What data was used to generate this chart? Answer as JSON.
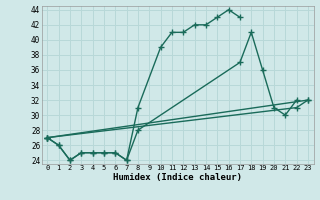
{
  "xlabel": "Humidex (Indice chaleur)",
  "xlim": [
    -0.5,
    23.5
  ],
  "ylim": [
    23.5,
    44.5
  ],
  "xticks": [
    0,
    1,
    2,
    3,
    4,
    5,
    6,
    7,
    8,
    9,
    10,
    11,
    12,
    13,
    14,
    15,
    16,
    17,
    18,
    19,
    20,
    21,
    22,
    23
  ],
  "yticks": [
    24,
    26,
    28,
    30,
    32,
    34,
    36,
    38,
    40,
    42,
    44
  ],
  "bg_color": "#d0e8e8",
  "grid_color": "#b8d8d8",
  "line_color": "#1a6b5a",
  "lines": [
    {
      "x": [
        0,
        1,
        2,
        3,
        4,
        5,
        6,
        7,
        8,
        10,
        11,
        12,
        13,
        14,
        15,
        16,
        17
      ],
      "y": [
        27,
        26,
        24,
        25,
        25,
        25,
        25,
        24,
        31,
        39,
        41,
        41,
        42,
        42,
        43,
        44,
        43
      ]
    },
    {
      "x": [
        0,
        1,
        2,
        3,
        4,
        5,
        6,
        7,
        8,
        17,
        18,
        19,
        20,
        21,
        22
      ],
      "y": [
        27,
        26,
        24,
        25,
        25,
        25,
        25,
        24,
        28,
        37,
        41,
        36,
        31,
        30,
        32
      ]
    },
    {
      "x": [
        0,
        22,
        23
      ],
      "y": [
        27,
        31,
        32
      ]
    },
    {
      "x": [
        0,
        23
      ],
      "y": [
        27,
        32
      ]
    }
  ]
}
